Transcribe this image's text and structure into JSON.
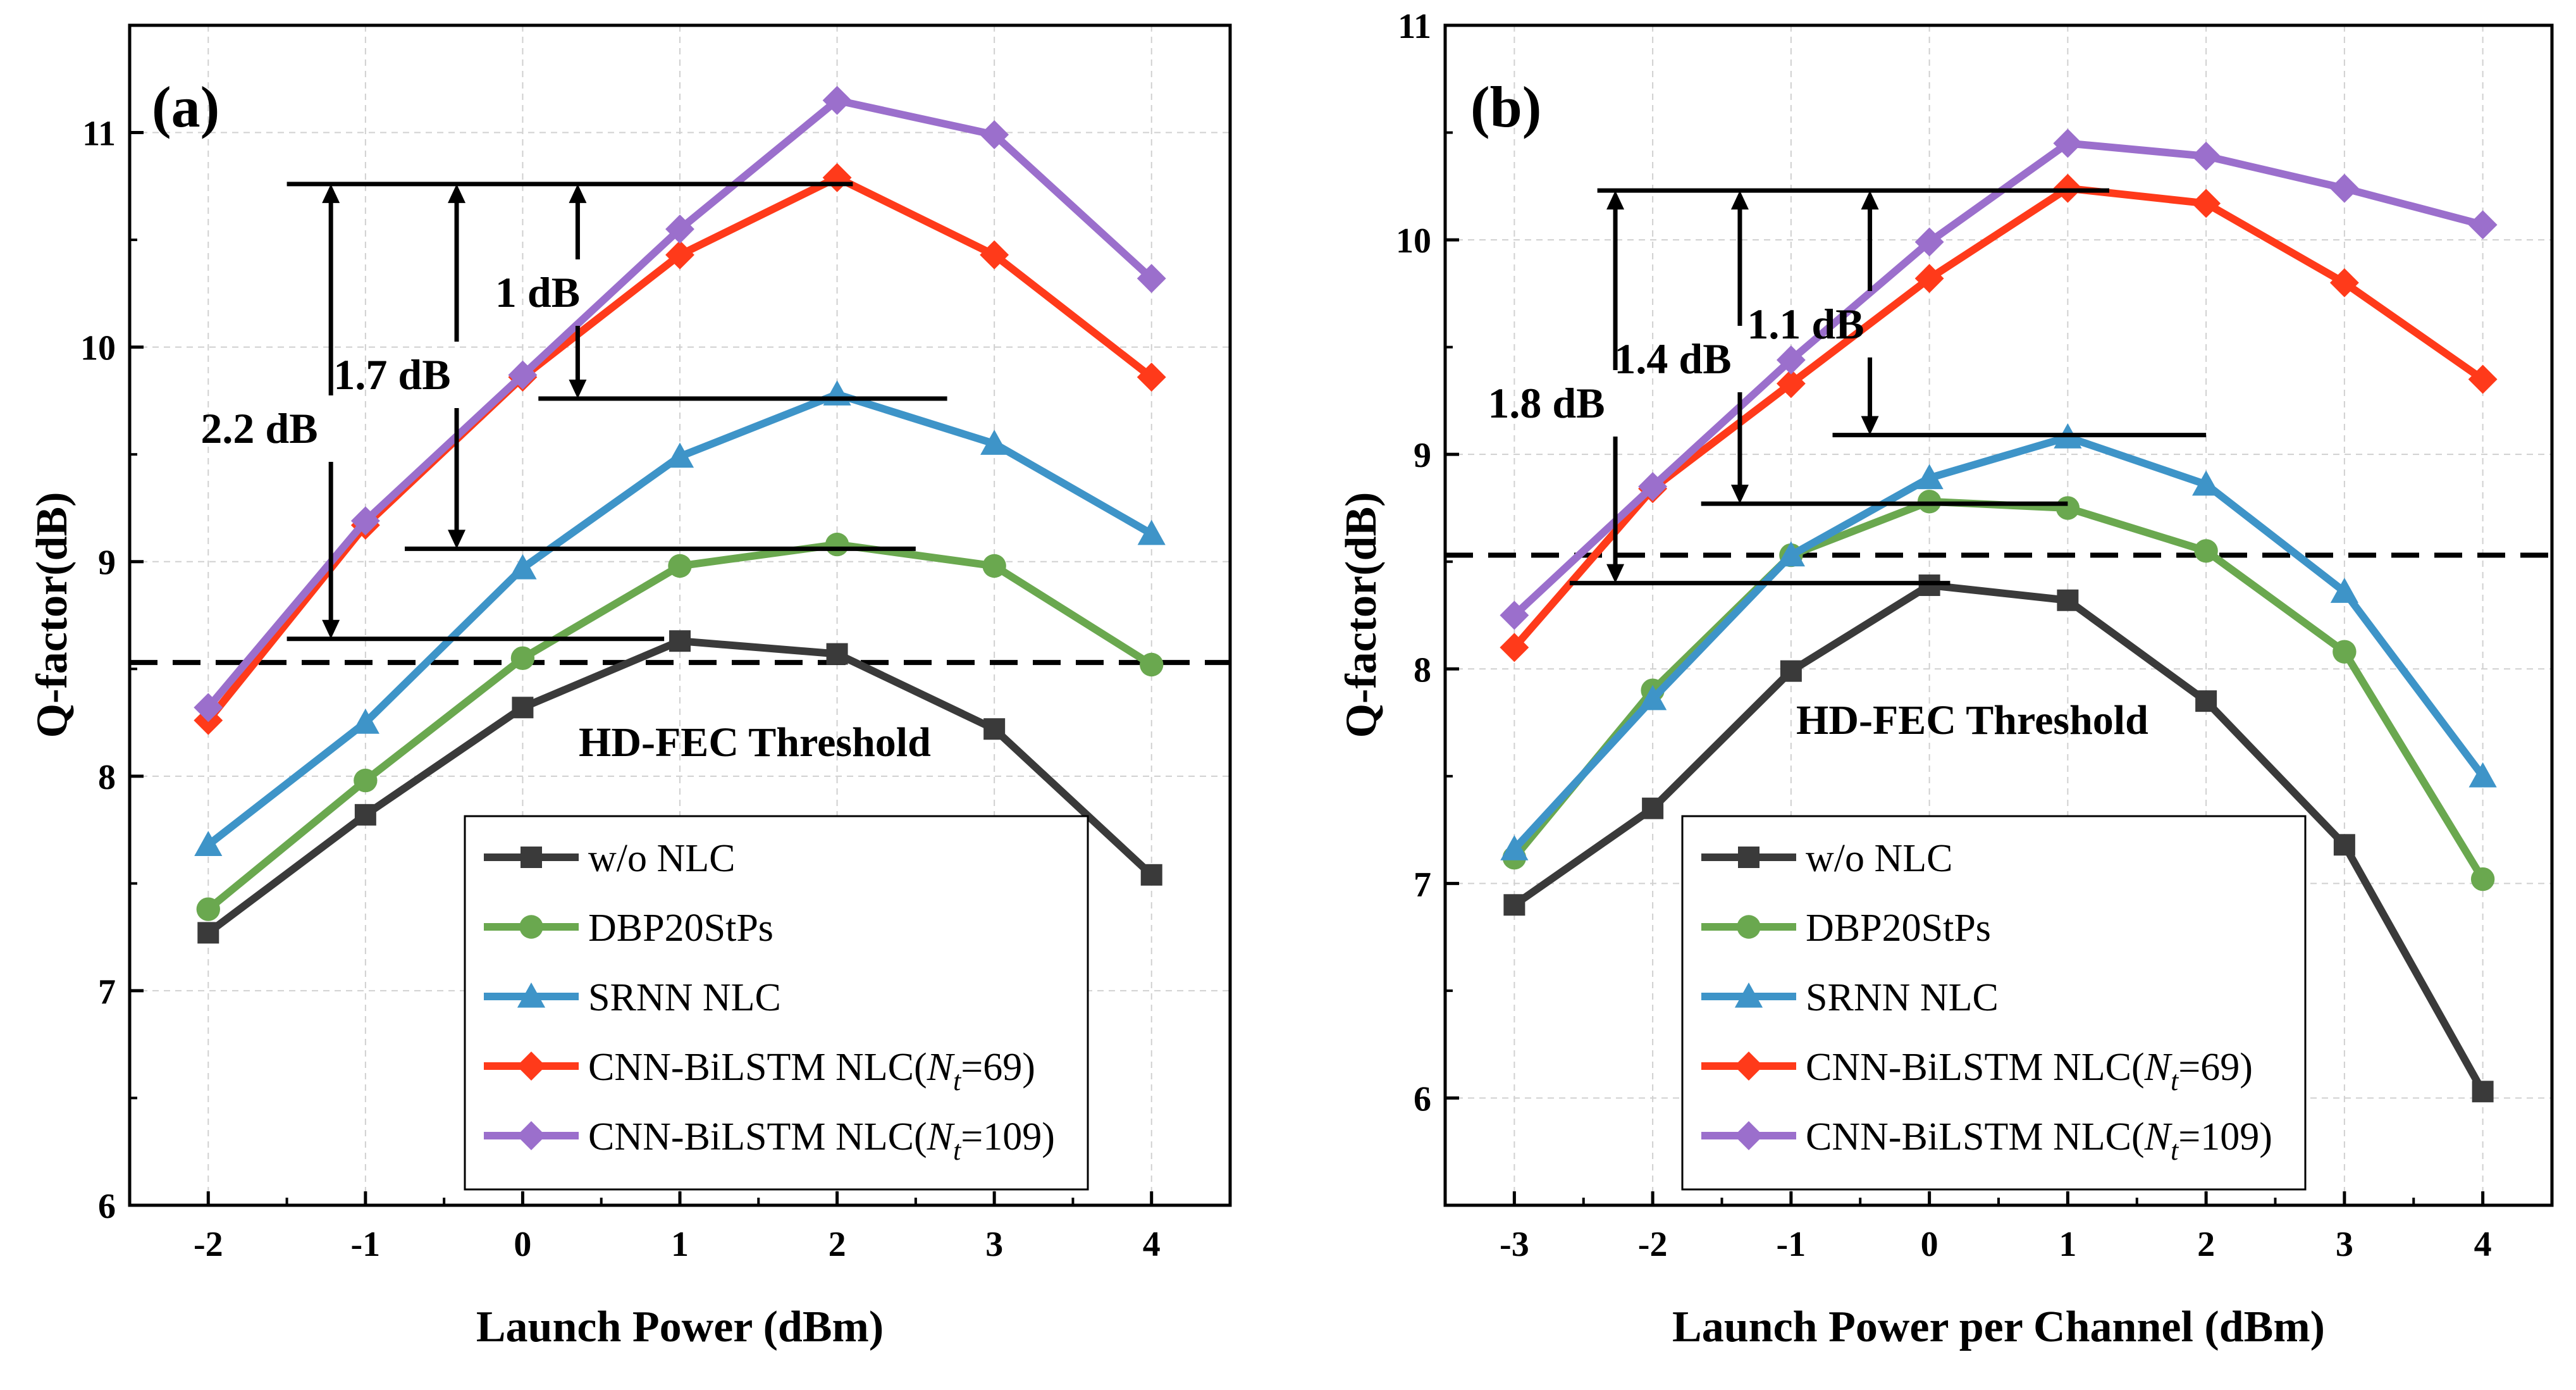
{
  "chart_data": [
    {
      "type": "line",
      "panel_label": "(a)",
      "xlabel": "Launch Power (dBm)",
      "ylabel": "Q-factor(dB)",
      "x": [
        -2,
        -1,
        0,
        1,
        2,
        3,
        4
      ],
      "xlim": [
        -2.5,
        4.5
      ],
      "ylim": [
        6,
        11.5
      ],
      "xticks": [
        "-2",
        "-1",
        "0",
        "1",
        "2",
        "3",
        "4"
      ],
      "yticks": [
        "6",
        "7",
        "8",
        "9",
        "10",
        "11"
      ],
      "threshold": {
        "label": "HD-FEC Threshold",
        "value": 8.53
      },
      "series": [
        {
          "name": "w/o NLC",
          "color": "#3a3a3a",
          "marker": "square",
          "values": [
            7.27,
            7.82,
            8.32,
            8.63,
            8.57,
            8.22,
            7.54
          ]
        },
        {
          "name": "DBP20StPs",
          "color": "#6aa84f",
          "marker": "circle",
          "values": [
            7.38,
            7.98,
            8.55,
            8.98,
            9.08,
            8.98,
            8.52
          ]
        },
        {
          "name": "SRNN NLC",
          "color": "#3e94c8",
          "marker": "triangle",
          "values": [
            7.68,
            8.25,
            8.97,
            9.49,
            9.78,
            9.55,
            9.13
          ]
        },
        {
          "name": "CNN-BiLSTM NLC(",
          "name_sub": "t",
          "name_rest": "=69)",
          "color": "#ff3a1a",
          "marker": "diamond",
          "values": [
            8.26,
            9.17,
            9.86,
            10.43,
            10.79,
            10.43,
            9.86
          ]
        },
        {
          "name": "CNN-BiLSTM NLC(",
          "name_sub": "t",
          "name_rest": "=109)",
          "color": "#9b6fcc",
          "marker": "diamond",
          "values": [
            8.32,
            9.19,
            9.87,
            10.55,
            11.15,
            10.99,
            10.32
          ]
        }
      ],
      "gain_annotations": [
        {
          "label": "2.2 dB",
          "x": -1.22,
          "from": 10.76,
          "to": 8.64
        },
        {
          "label": "1.7 dB",
          "x": -0.42,
          "from": 10.76,
          "to": 9.06
        },
        {
          "label": "1 dB",
          "x": 0.35,
          "from": 10.76,
          "to": 9.76
        }
      ],
      "reference_lines": [
        {
          "y": 10.76,
          "x_from": -1.5,
          "x_to": 2.1
        },
        {
          "y": 9.76,
          "x_from": 0.1,
          "x_to": 2.7
        },
        {
          "y": 9.06,
          "x_from": -0.75,
          "x_to": 2.5
        },
        {
          "y": 8.64,
          "x_from": -1.5,
          "x_to": 0.9
        }
      ]
    },
    {
      "type": "line",
      "panel_label": "(b)",
      "xlabel": "Launch Power per Channel (dBm)",
      "ylabel": "Q-factor(dB)",
      "x": [
        -3,
        -2,
        -1,
        0,
        1,
        2,
        3,
        4
      ],
      "xlim": [
        -3.5,
        4.5
      ],
      "ylim": [
        5.5,
        11
      ],
      "xticks": [
        "-3",
        "-2",
        "-1",
        "0",
        "1",
        "2",
        "3",
        "4"
      ],
      "yticks": [
        "6",
        "7",
        "8",
        "9",
        "10",
        "11"
      ],
      "threshold": {
        "label": "HD-FEC Threshold",
        "value": 8.53
      },
      "series": [
        {
          "name": "w/o NLC",
          "color": "#3a3a3a",
          "marker": "square",
          "values": [
            6.9,
            7.35,
            7.99,
            8.39,
            8.32,
            7.85,
            7.18,
            6.03
          ]
        },
        {
          "name": "DBP20StPs",
          "color": "#6aa84f",
          "marker": "circle",
          "values": [
            7.12,
            7.9,
            8.53,
            8.78,
            8.75,
            8.55,
            8.08,
            7.02
          ]
        },
        {
          "name": "SRNN NLC",
          "color": "#3e94c8",
          "marker": "triangle",
          "values": [
            7.16,
            7.86,
            8.53,
            8.89,
            9.08,
            8.86,
            8.36,
            7.5
          ]
        },
        {
          "name": "CNN-BiLSTM NLC(",
          "name_sub": "t",
          "name_rest": "=69)",
          "color": "#ff3a1a",
          "marker": "diamond",
          "values": [
            8.1,
            8.84,
            9.33,
            9.82,
            10.24,
            10.17,
            9.8,
            9.35
          ]
        },
        {
          "name": "CNN-BiLSTM NLC(",
          "name_sub": "t",
          "name_rest": "=109)",
          "color": "#9b6fcc",
          "marker": "diamond",
          "values": [
            8.25,
            8.85,
            9.44,
            9.99,
            10.45,
            10.39,
            10.24,
            10.07
          ]
        }
      ],
      "gain_annotations": [
        {
          "label": "1.8 dB",
          "x": -2.27,
          "from": 10.23,
          "to": 8.4
        },
        {
          "label": "1.4 dB",
          "x": -1.37,
          "from": 10.23,
          "to": 8.77
        },
        {
          "label": "1.1 dB",
          "x": -0.43,
          "from": 10.23,
          "to": 9.09
        }
      ],
      "reference_lines": [
        {
          "y": 10.23,
          "x_from": -2.4,
          "x_to": 1.3
        },
        {
          "y": 9.09,
          "x_from": -0.7,
          "x_to": 2.0
        },
        {
          "y": 8.77,
          "x_from": -1.65,
          "x_to": 1.0
        },
        {
          "y": 8.4,
          "x_from": -2.6,
          "x_to": 0.15
        }
      ]
    }
  ]
}
